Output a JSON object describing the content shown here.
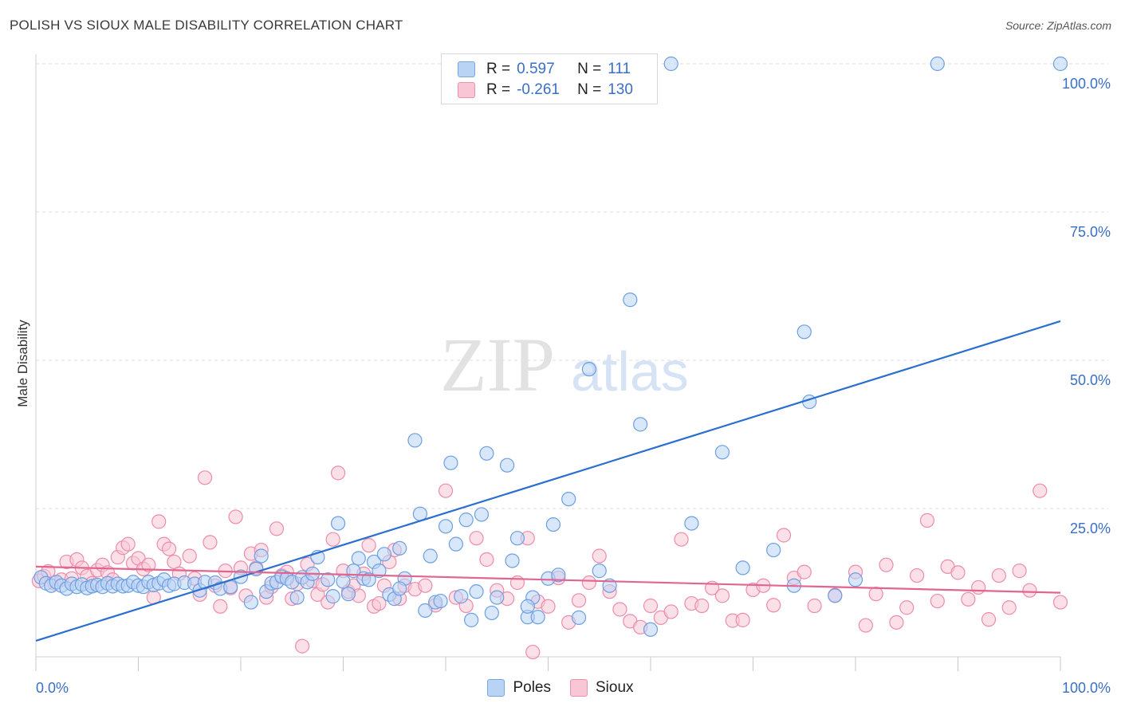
{
  "title": "POLISH VS SIOUX MALE DISABILITY CORRELATION CHART",
  "source": "Source: ZipAtlas.com",
  "watermark": {
    "zip": "ZIP",
    "atlas": "atlas"
  },
  "legend": {
    "rows": [
      {
        "r_label": "R =",
        "r_value": "0.597",
        "n_label": "N =",
        "n_value": "111",
        "color": "#b9d3f5",
        "border": "#7aa6e0"
      },
      {
        "r_label": "R =",
        "r_value": "-0.261",
        "n_label": "N =",
        "n_value": "130",
        "color": "#f9c6d6",
        "border": "#ee8fae"
      }
    ]
  },
  "colors": {
    "poles_fill": "#b9d3f5",
    "poles_stroke": "#6d9fe0",
    "poles_line": "#2a6fcf",
    "sioux_fill": "#f9c6d6",
    "sioux_stroke": "#ec8cab",
    "sioux_line": "#e0668f",
    "axis_label": "#3a6fc6",
    "grid": "#dcdcdc"
  },
  "chart_data": {
    "type": "scatter",
    "xlabel": "",
    "ylabel": "Male Disability",
    "xlim": [
      0,
      100
    ],
    "ylim": [
      0,
      100
    ],
    "x_tick_labels": [
      "0.0%",
      "100.0%"
    ],
    "y_ticks": [
      25,
      50,
      75,
      100
    ],
    "y_tick_labels": [
      "25.0%",
      "50.0%",
      "75.0%",
      "100.0%"
    ],
    "legend_position": "bottom",
    "series": [
      {
        "name": "Poles",
        "trend": {
          "x": [
            0,
            100
          ],
          "y": [
            2.7,
            56.6
          ]
        },
        "points": [
          [
            0.5,
            13.4
          ],
          [
            1,
            12.4
          ],
          [
            1.5,
            12
          ],
          [
            2,
            12.6
          ],
          [
            2.5,
            12
          ],
          [
            3,
            11.5
          ],
          [
            3.5,
            12.3
          ],
          [
            4,
            11.8
          ],
          [
            4.5,
            12.2
          ],
          [
            5,
            11.6
          ],
          [
            5.5,
            11.9
          ],
          [
            6,
            12.1
          ],
          [
            6.5,
            11.8
          ],
          [
            7,
            12.4
          ],
          [
            7.5,
            11.9
          ],
          [
            8,
            12.3
          ],
          [
            8.5,
            11.9
          ],
          [
            9,
            12
          ],
          [
            9.5,
            12.6
          ],
          [
            10,
            12
          ],
          [
            10.5,
            11.8
          ],
          [
            11,
            12.6
          ],
          [
            11.5,
            12.1
          ],
          [
            12,
            12.4
          ],
          [
            12.5,
            13
          ],
          [
            13,
            12
          ],
          [
            13.5,
            12.3
          ],
          [
            14.5,
            12.5
          ],
          [
            15.5,
            12.3
          ],
          [
            16,
            11.2
          ],
          [
            16.5,
            12.6
          ],
          [
            17.5,
            12.5
          ],
          [
            18,
            11.5
          ],
          [
            19,
            11.8
          ],
          [
            20,
            13.5
          ],
          [
            21,
            9.2
          ],
          [
            21.5,
            14.8
          ],
          [
            22,
            17
          ],
          [
            22.5,
            11
          ],
          [
            23,
            12.4
          ],
          [
            23.5,
            12.6
          ],
          [
            24,
            13.5
          ],
          [
            24.5,
            13.2
          ],
          [
            25,
            12.6
          ],
          [
            25.5,
            10
          ],
          [
            26,
            13.4
          ],
          [
            26.5,
            12.6
          ],
          [
            27,
            14
          ],
          [
            27.5,
            16.8
          ],
          [
            28.5,
            13
          ],
          [
            29,
            10.2
          ],
          [
            29.5,
            22.5
          ],
          [
            30,
            12.7
          ],
          [
            30.5,
            10.6
          ],
          [
            31,
            14.5
          ],
          [
            31.5,
            16.6
          ],
          [
            32,
            13.2
          ],
          [
            32.5,
            13
          ],
          [
            33,
            16
          ],
          [
            33.5,
            14.5
          ],
          [
            34,
            17.3
          ],
          [
            34.5,
            10.5
          ],
          [
            35,
            9.8
          ],
          [
            35.5,
            18.3
          ],
          [
            36,
            13.2
          ],
          [
            37,
            36.5
          ],
          [
            37.5,
            24.1
          ],
          [
            38,
            7.8
          ],
          [
            38.5,
            17
          ],
          [
            39,
            9.2
          ],
          [
            39.5,
            9.4
          ],
          [
            40,
            22
          ],
          [
            40.5,
            32.7
          ],
          [
            41,
            19
          ],
          [
            41.5,
            10.2
          ],
          [
            42,
            23.1
          ],
          [
            42.5,
            6.2
          ],
          [
            43,
            11
          ],
          [
            43.5,
            24
          ],
          [
            44,
            34.3
          ],
          [
            44.5,
            7.4
          ],
          [
            45,
            10
          ],
          [
            46,
            32.3
          ],
          [
            46.5,
            16.2
          ],
          [
            47,
            20
          ],
          [
            48,
            6.7
          ],
          [
            48.5,
            10
          ],
          [
            49,
            6.7
          ],
          [
            50,
            13.2
          ],
          [
            50.5,
            22.3
          ],
          [
            51,
            13.8
          ],
          [
            52,
            26.6
          ],
          [
            53,
            6.6
          ],
          [
            55,
            14.5
          ],
          [
            58,
            60.2
          ],
          [
            59,
            39.2
          ],
          [
            60,
            4.6
          ],
          [
            62,
            100
          ],
          [
            67,
            34.5
          ],
          [
            75,
            54.8
          ],
          [
            75.5,
            43
          ],
          [
            78,
            10.3
          ],
          [
            88,
            100
          ],
          [
            100,
            100
          ],
          [
            54,
            48.5
          ],
          [
            35.5,
            11.5
          ],
          [
            48,
            8.5
          ],
          [
            56,
            12
          ],
          [
            64,
            22.5
          ],
          [
            69,
            15
          ],
          [
            72,
            18
          ],
          [
            74,
            12
          ],
          [
            80,
            13
          ]
        ]
      },
      {
        "name": "Sioux",
        "trend": {
          "x": [
            0,
            100
          ],
          "y": [
            15.2,
            10.8
          ]
        },
        "points": [
          [
            0.3,
            12.8
          ],
          [
            0.8,
            13.6
          ],
          [
            1.2,
            14.4
          ],
          [
            1.8,
            12.4
          ],
          [
            2.5,
            13
          ],
          [
            3,
            16
          ],
          [
            3.5,
            13.2
          ],
          [
            4,
            16.4
          ],
          [
            4.5,
            15
          ],
          [
            5,
            13.6
          ],
          [
            5.5,
            12.4
          ],
          [
            6,
            14.6
          ],
          [
            6.5,
            15.5
          ],
          [
            7,
            14.2
          ],
          [
            7.5,
            13
          ],
          [
            8,
            16.8
          ],
          [
            8.5,
            18.4
          ],
          [
            9,
            19
          ],
          [
            9.5,
            15.8
          ],
          [
            10,
            16.6
          ],
          [
            10.5,
            14.8
          ],
          [
            11,
            15.5
          ],
          [
            11.5,
            10
          ],
          [
            12,
            22.8
          ],
          [
            12.5,
            19
          ],
          [
            13,
            18.2
          ],
          [
            13.5,
            16
          ],
          [
            14,
            14
          ],
          [
            15,
            17
          ],
          [
            15.5,
            13.2
          ],
          [
            16,
            10.5
          ],
          [
            16.5,
            30.2
          ],
          [
            17,
            19.3
          ],
          [
            17.5,
            12
          ],
          [
            18,
            8.5
          ],
          [
            18.5,
            14.5
          ],
          [
            19,
            11.6
          ],
          [
            19.5,
            23.6
          ],
          [
            20,
            15
          ],
          [
            20.5,
            10.3
          ],
          [
            21,
            17.4
          ],
          [
            21.5,
            15
          ],
          [
            22,
            18
          ],
          [
            22.5,
            10
          ],
          [
            23,
            11.8
          ],
          [
            23.5,
            21.6
          ],
          [
            24,
            13.7
          ],
          [
            24.5,
            14.3
          ],
          [
            25,
            9.8
          ],
          [
            25.5,
            12.3
          ],
          [
            26,
            1.8
          ],
          [
            26.5,
            15.6
          ],
          [
            27,
            12.8
          ],
          [
            27.5,
            10.5
          ],
          [
            28,
            12.2
          ],
          [
            28.5,
            9.2
          ],
          [
            29,
            19.8
          ],
          [
            29.5,
            31
          ],
          [
            30,
            14.5
          ],
          [
            30.5,
            11
          ],
          [
            31,
            12
          ],
          [
            31.5,
            10.3
          ],
          [
            32,
            14
          ],
          [
            32.5,
            18.8
          ],
          [
            33,
            8.5
          ],
          [
            33.5,
            9
          ],
          [
            34,
            12
          ],
          [
            34.5,
            16
          ],
          [
            35,
            18
          ],
          [
            35.5,
            9.8
          ],
          [
            36,
            12
          ],
          [
            37,
            11.4
          ],
          [
            38,
            12
          ],
          [
            39,
            8.7
          ],
          [
            40,
            28
          ],
          [
            41,
            10
          ],
          [
            42,
            8.6
          ],
          [
            43,
            20
          ],
          [
            44,
            16.4
          ],
          [
            45,
            11.2
          ],
          [
            46,
            9.8
          ],
          [
            47,
            12.5
          ],
          [
            48,
            20
          ],
          [
            48.5,
            0.8
          ],
          [
            49,
            9.3
          ],
          [
            50,
            8.5
          ],
          [
            51,
            13.3
          ],
          [
            52,
            5.8
          ],
          [
            53,
            9.5
          ],
          [
            54,
            12.5
          ],
          [
            55,
            17
          ],
          [
            56,
            11
          ],
          [
            57,
            8
          ],
          [
            58,
            6
          ],
          [
            59,
            5
          ],
          [
            60,
            8.6
          ],
          [
            61,
            6.6
          ],
          [
            62,
            7.6
          ],
          [
            63,
            19.8
          ],
          [
            64,
            9
          ],
          [
            65,
            8.6
          ],
          [
            66,
            11.6
          ],
          [
            67,
            10.3
          ],
          [
            68,
            6.1
          ],
          [
            69,
            6.2
          ],
          [
            70,
            11.3
          ],
          [
            71,
            12
          ],
          [
            72,
            8.7
          ],
          [
            73,
            20.5
          ],
          [
            74,
            13.3
          ],
          [
            75,
            14.3
          ],
          [
            76,
            8.6
          ],
          [
            78,
            10.4
          ],
          [
            80,
            14.3
          ],
          [
            81,
            5.3
          ],
          [
            82,
            10.6
          ],
          [
            83,
            15.5
          ],
          [
            84,
            5.8
          ],
          [
            85,
            8.3
          ],
          [
            86,
            13.7
          ],
          [
            87,
            23
          ],
          [
            88,
            9.4
          ],
          [
            89,
            15.2
          ],
          [
            90,
            14.2
          ],
          [
            91,
            9.7
          ],
          [
            92,
            11.7
          ],
          [
            93,
            6.3
          ],
          [
            94,
            13.7
          ],
          [
            95,
            8.3
          ],
          [
            96,
            14.5
          ],
          [
            97,
            11.2
          ],
          [
            98,
            28
          ],
          [
            100,
            9.2
          ]
        ]
      }
    ]
  }
}
